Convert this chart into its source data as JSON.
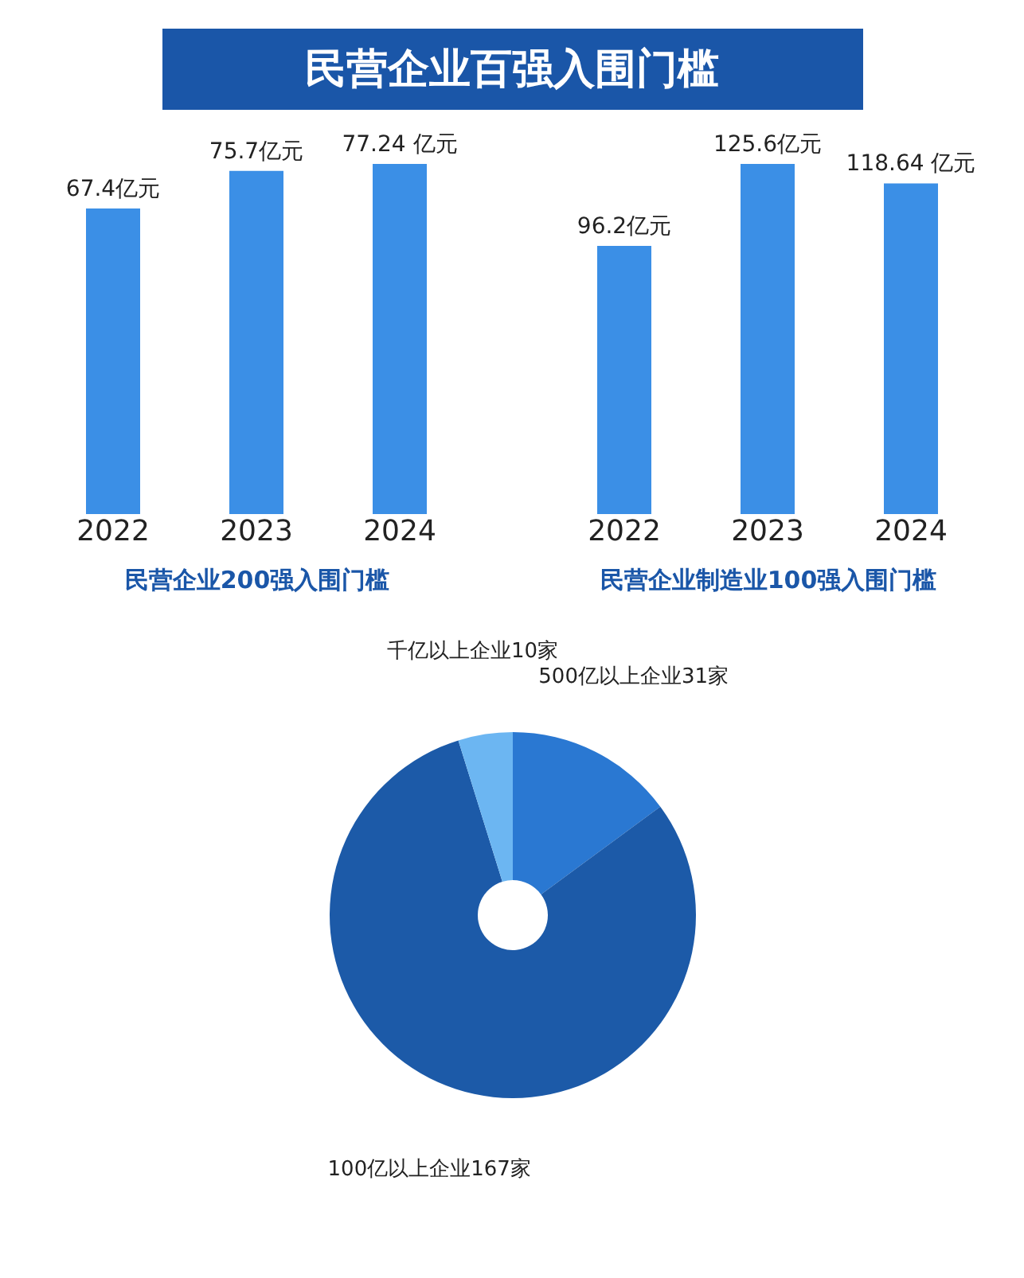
{
  "chart_data": [
    {
      "type": "bar",
      "title": "民营企业百强入围门槛",
      "xlabel": "民营企业200强入围门槛",
      "categories": [
        "2022",
        "2023",
        "2024"
      ],
      "values": [
        67.4,
        75.7,
        77.24
      ],
      "value_labels": [
        "67.4亿元",
        "75.7亿元",
        "77.24 亿元"
      ],
      "color": "#3b8fe6"
    },
    {
      "type": "bar",
      "xlabel": "民营企业制造业100强入围门槛",
      "categories": [
        "2022",
        "2023",
        "2024"
      ],
      "values": [
        96.2,
        125.6,
        118.64
      ],
      "value_labels": [
        "96.2亿元",
        "125.6亿元",
        "118.64 亿元"
      ],
      "color": "#3b8fe6"
    },
    {
      "type": "donut",
      "categories": [
        "500亿以上企业31家",
        "100亿以上企业167家",
        "千亿以上企业10家"
      ],
      "values": [
        31,
        167,
        10
      ],
      "colors": [
        "#2a78d2",
        "#1c5aa8",
        "#6cb6f2"
      ]
    }
  ]
}
